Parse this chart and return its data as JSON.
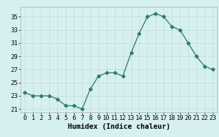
{
  "x": [
    0,
    1,
    2,
    3,
    4,
    5,
    6,
    7,
    8,
    9,
    10,
    11,
    12,
    13,
    14,
    15,
    16,
    17,
    18,
    19,
    20,
    21,
    22,
    23
  ],
  "y": [
    23.5,
    23.0,
    23.0,
    23.0,
    22.5,
    21.5,
    21.5,
    21.0,
    24.0,
    26.0,
    26.5,
    26.5,
    26.0,
    29.5,
    32.5,
    35.0,
    35.5,
    35.0,
    33.5,
    33.0,
    31.0,
    29.0,
    27.5,
    27.0
  ],
  "line_color": "#2e7d6e",
  "marker": "D",
  "marker_size": 2.5,
  "bg_color": "#d6f0f0",
  "grid_color": "#c0dada",
  "xlabel": "Humidex (Indice chaleur)",
  "ylim": [
    20.5,
    36.5
  ],
  "xlim": [
    -0.5,
    23.5
  ],
  "yticks": [
    21,
    23,
    25,
    27,
    29,
    31,
    33,
    35
  ],
  "xticks": [
    0,
    1,
    2,
    3,
    4,
    5,
    6,
    7,
    8,
    9,
    10,
    11,
    12,
    13,
    14,
    15,
    16,
    17,
    18,
    19,
    20,
    21,
    22,
    23
  ],
  "tick_fontsize": 6.5,
  "xlabel_fontsize": 7.5
}
